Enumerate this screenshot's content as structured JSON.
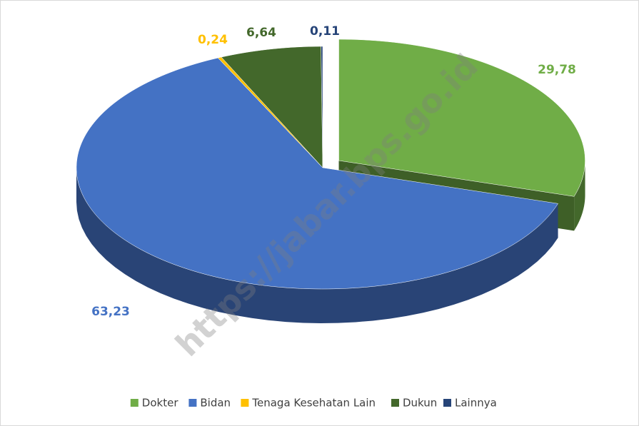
{
  "chart_data": {
    "type": "pie3d",
    "categories": [
      "Dokter",
      "Bidan",
      "Tenaga Kesehatan Lain",
      "Dukun",
      "Lainnya"
    ],
    "values": [
      29.78,
      63.23,
      0.24,
      6.64,
      0.11
    ],
    "value_labels": [
      "29,78",
      "63,23",
      "0,24",
      "6,64",
      "0,11"
    ],
    "colors": [
      "#70ad47",
      "#4472c4",
      "#ffc000",
      "#43682b",
      "#264478"
    ],
    "legend": "bottom",
    "watermark": "https://jabar.bps.go.id"
  }
}
